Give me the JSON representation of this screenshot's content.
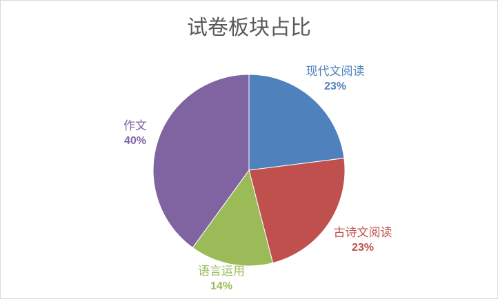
{
  "chart_data": {
    "type": "pie",
    "title": "试卷板块占比",
    "start_angle": "top, clockwise",
    "series": [
      {
        "name": "现代文阅读",
        "value": 23,
        "label": "23%",
        "color": "#4F81BD"
      },
      {
        "name": "古诗文阅读",
        "value": 23,
        "label": "23%",
        "color": "#C0504D"
      },
      {
        "name": "语言运用",
        "value": 14,
        "label": "14%",
        "color": "#9BBB59"
      },
      {
        "name": "作文",
        "value": 40,
        "label": "40%",
        "color": "#8064A2"
      }
    ]
  }
}
